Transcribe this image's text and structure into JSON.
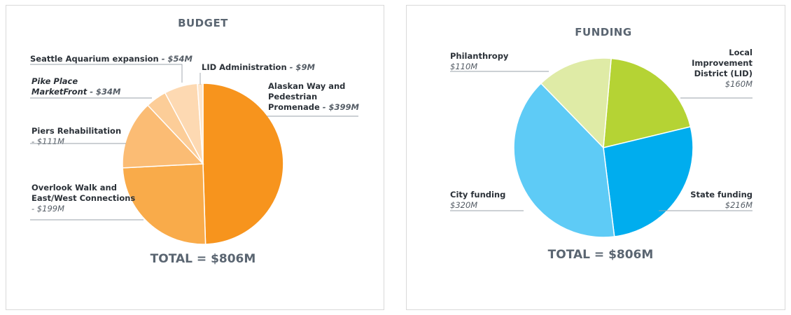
{
  "chart_data": [
    {
      "type": "pie",
      "title": "BUDGET",
      "total_label": "TOTAL = $806M",
      "slices": [
        {
          "name": "Alaskan Way and Pedestrian Promenade",
          "label_lines": [
            "Alaskan Way and",
            "Pedestrian",
            "Promenade"
          ],
          "value_label": "- $399M",
          "value": 399,
          "color": "#f7941d"
        },
        {
          "name": "Overlook Walk and East/West Connections",
          "label_lines": [
            "Overlook Walk and",
            "East/West Connections"
          ],
          "value_label": "- $199M",
          "value": 199,
          "color": "#f9ab4a"
        },
        {
          "name": "Piers Rehabilitation",
          "label_lines": [
            "Piers Rehabilitation"
          ],
          "value_label": "- $111M",
          "value": 111,
          "color": "#fbbc74"
        },
        {
          "name": "Pike Place MarketFront",
          "label_lines": [
            "Pike Place",
            "MarketFront"
          ],
          "value_label": "- $34M",
          "value": 34,
          "color": "#fccd98"
        },
        {
          "name": "Seattle Aquarium expansion",
          "label_lines": [
            "Seattle Aquarium expansion"
          ],
          "value_label": "- $54M",
          "value": 54,
          "color": "#fdd9b2"
        },
        {
          "name": "LID Administration",
          "label_lines": [
            "LID Administration"
          ],
          "value_label": "- $9M",
          "value": 9,
          "color": "#fee6cc"
        }
      ]
    },
    {
      "type": "pie",
      "title": "FUNDING",
      "total_label": "TOTAL = $806M",
      "slices": [
        {
          "name": "Local Improvement District (LID)",
          "label_lines": [
            "Local",
            "Improvement",
            "District (LID)"
          ],
          "value_label": "$160M",
          "value": 160,
          "color": "#b5d334"
        },
        {
          "name": "State funding",
          "label_lines": [
            "State funding"
          ],
          "value_label": "$216M",
          "value": 216,
          "color": "#00adee"
        },
        {
          "name": "City funding",
          "label_lines": [
            "City funding"
          ],
          "value_label": "$320M",
          "value": 320,
          "color": "#5ecbf6"
        },
        {
          "name": "Philanthropy",
          "label_lines": [
            "Philanthropy"
          ],
          "value_label": "$110M",
          "value": 110,
          "color": "#dfeba6"
        }
      ]
    }
  ]
}
